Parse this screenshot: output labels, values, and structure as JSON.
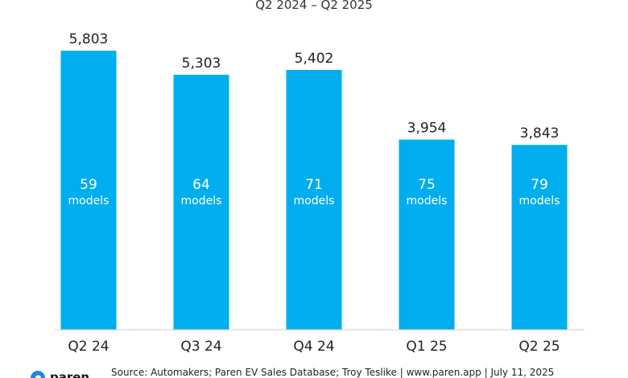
{
  "chart_data": {
    "type": "bar",
    "title": "",
    "subtitle": "Q2 2024 – Q2 2025",
    "xlabel": "",
    "ylabel": "",
    "categories": [
      "Q2 24",
      "Q3 24",
      "Q4 24",
      "Q1 25",
      "Q2 25"
    ],
    "values": [
      5803,
      5303,
      5402,
      3954,
      3843
    ],
    "value_labels": [
      "5,803",
      "5,303",
      "5,402",
      "3,954",
      "3,843"
    ],
    "models": [
      59,
      64,
      71,
      75,
      79
    ],
    "models_unit": "models",
    "ylim": [
      0,
      5803
    ],
    "grid": false,
    "legend": "none",
    "bar_color": "#00aeef"
  },
  "footer": {
    "brand": "paren",
    "brand_color": "#1e88e5",
    "source": "Source: Automakers; Paren EV Sales Database; Troy Teslike | www.paren.app | July 11, 2025"
  }
}
